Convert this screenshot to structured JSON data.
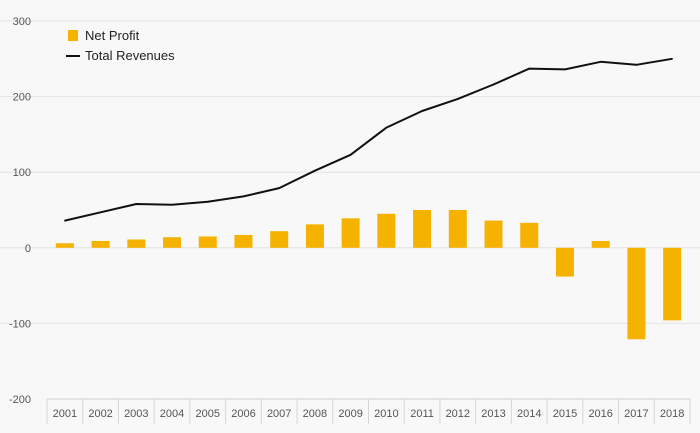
{
  "chart_data": {
    "type": "bar+line",
    "categories": [
      "2001",
      "2002",
      "2003",
      "2004",
      "2005",
      "2006",
      "2007",
      "2008",
      "2009",
      "2010",
      "2011",
      "2012",
      "2013",
      "2014",
      "2015",
      "2016",
      "2017",
      "2018"
    ],
    "series": [
      {
        "name": "Net Profit",
        "type": "bar",
        "color": "#f5b200",
        "values": [
          6,
          9,
          11,
          14,
          15,
          17,
          22,
          31,
          39,
          45,
          50,
          50,
          36,
          33,
          -38,
          9,
          -121,
          -96
        ]
      },
      {
        "name": "Total Revenues",
        "type": "line",
        "color": "#111111",
        "values": [
          36,
          47,
          58,
          57,
          61,
          68,
          79,
          102,
          123,
          159,
          181,
          197,
          216,
          237,
          236,
          246,
          242,
          250
        ]
      }
    ],
    "ylim": [
      -200,
      300
    ],
    "yticks": [
      -200,
      -100,
      0,
      100,
      200,
      300
    ],
    "grid": true,
    "legend_position": "top-left",
    "title": "",
    "xlabel": "",
    "ylabel": ""
  }
}
